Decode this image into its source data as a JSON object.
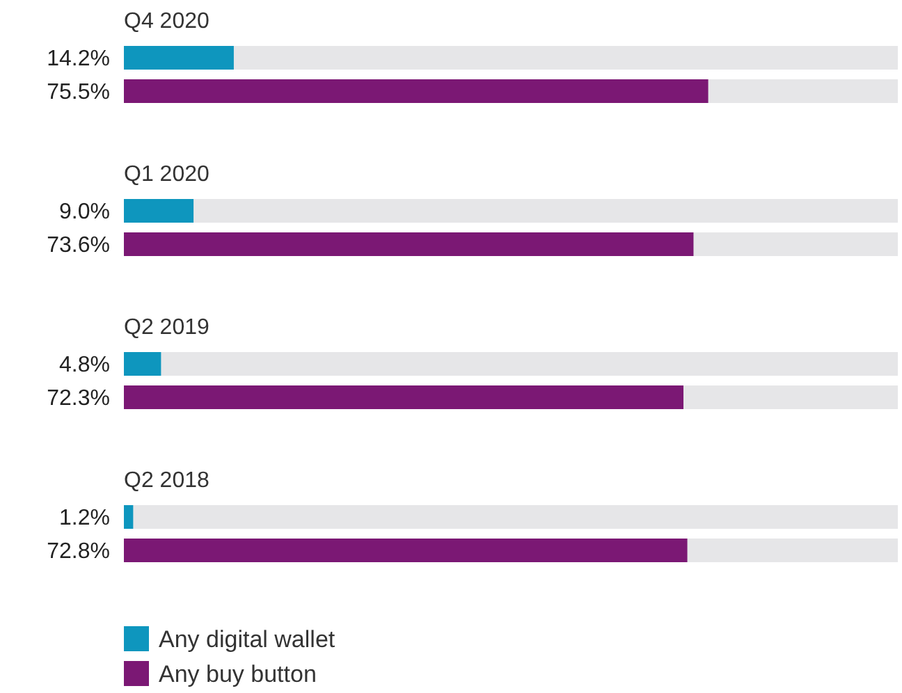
{
  "chart_data": {
    "type": "bar",
    "orientation": "horizontal",
    "categories": [
      "Q4 2020",
      "Q1 2020",
      "Q2 2019",
      "Q2 2018"
    ],
    "series": [
      {
        "name": "Any digital wallet",
        "color": "#0e96be",
        "values": [
          14.2,
          9.0,
          4.8,
          1.2
        ],
        "value_labels": [
          "14.2%",
          "9.0%",
          "4.8%",
          "1.2%"
        ]
      },
      {
        "name": "Any buy button",
        "color": "#7b1874",
        "values": [
          75.5,
          73.6,
          72.3,
          72.8
        ],
        "value_labels": [
          "75.5%",
          "73.6%",
          "72.3%",
          "72.8%"
        ]
      }
    ],
    "xlim": [
      0,
      100
    ],
    "legend": "bottom left"
  }
}
